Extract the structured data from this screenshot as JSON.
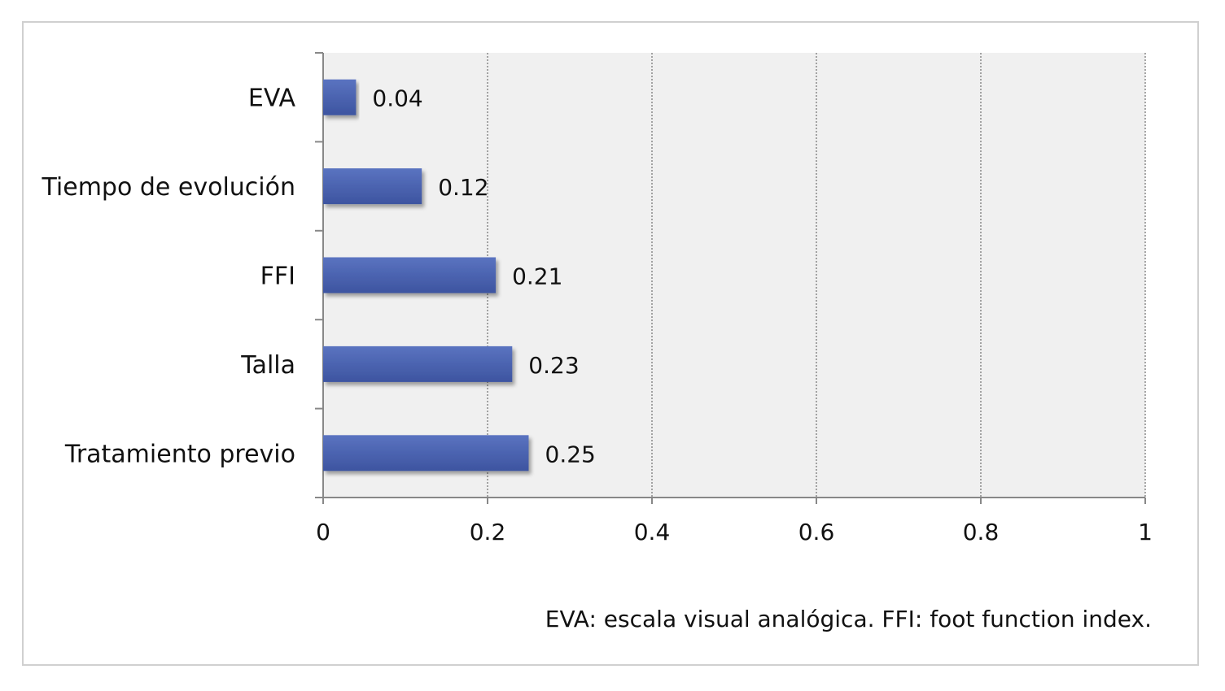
{
  "chart_data": {
    "type": "bar",
    "orientation": "horizontal",
    "categories": [
      "EVA",
      "Tiempo de evolución",
      "FFI",
      "Talla",
      "Tratamiento previo"
    ],
    "values": [
      0.04,
      0.12,
      0.21,
      0.23,
      0.25
    ],
    "data_labels": [
      "0.04",
      "0.12",
      "0.21",
      "0.23",
      "0.25"
    ],
    "xlim": [
      0,
      1
    ],
    "xticks": [
      "0",
      "0.2",
      "0.4",
      "0.6",
      "0.8",
      "1"
    ],
    "grid": "vertical dotted",
    "title": "",
    "xlabel": "",
    "ylabel": "",
    "colors": {
      "bar": "#4a62b0",
      "plot_background": "#f0f0f0"
    }
  },
  "footnote": "EVA: escala visual analógica. FFI: foot function index."
}
